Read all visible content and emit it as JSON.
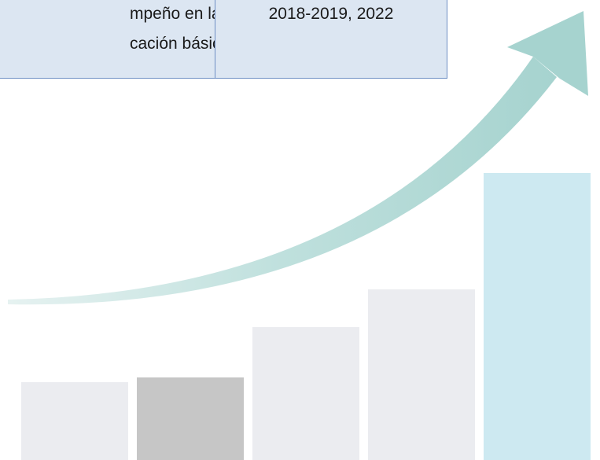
{
  "table": {
    "rows": [
      [
        {
          "lines": [
            "mpeño en las",
            "cación básica"
          ]
        },
        {
          "lines": [
            "2018-2019, 2022"
          ]
        }
      ]
    ]
  }
}
